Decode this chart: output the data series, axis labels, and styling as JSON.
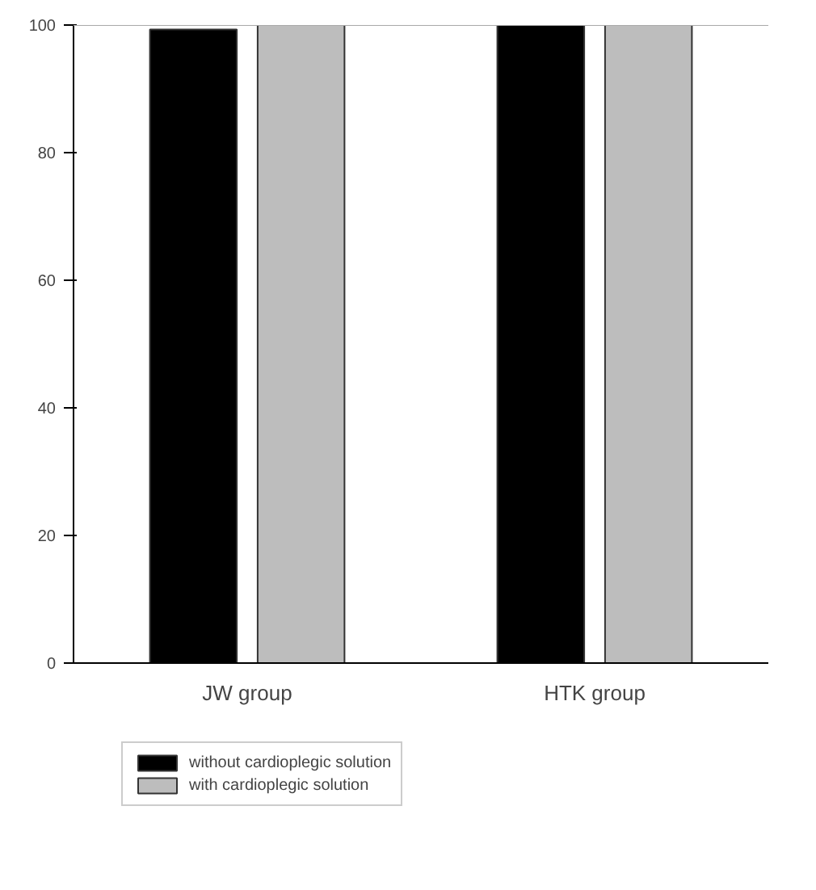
{
  "chart_data": {
    "type": "bar",
    "categories": [
      "JW group",
      "HTK group"
    ],
    "series": [
      {
        "name": "without cardioplegic solution",
        "color": "#000000",
        "values": [
          99.3,
          100
        ]
      },
      {
        "name": "with cardioplegic solution",
        "color": "#bdbdbd",
        "values": [
          100,
          100
        ]
      }
    ],
    "ylim": [
      0,
      100
    ],
    "yticks": [
      0,
      20,
      40,
      60,
      80,
      100
    ],
    "grid": false,
    "legend": "bottom left"
  }
}
